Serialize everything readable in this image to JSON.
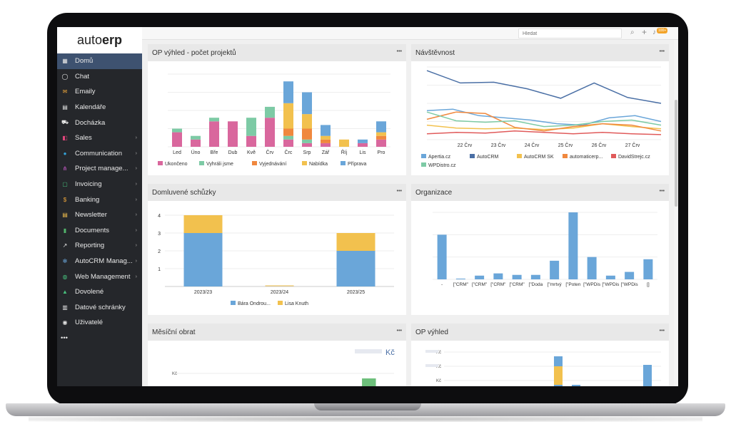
{
  "logo": {
    "part1": "auto",
    "part2": "erp"
  },
  "search": {
    "placeholder": "Hledat"
  },
  "notifications": {
    "count": "100+"
  },
  "sidebar": {
    "items": [
      {
        "label": "Domů",
        "icon": "grid-icon",
        "active": true,
        "arrow": false
      },
      {
        "label": "Chat",
        "icon": "chat-icon",
        "arrow": false
      },
      {
        "label": "Emaily",
        "icon": "email-icon",
        "arrow": false
      },
      {
        "label": "Kalendáře",
        "icon": "calendar-icon",
        "arrow": false
      },
      {
        "label": "Docházka",
        "icon": "car-icon",
        "arrow": false
      },
      {
        "label": "Sales",
        "icon": "sales-icon",
        "arrow": true
      },
      {
        "label": "Communication",
        "icon": "communication-icon",
        "arrow": true
      },
      {
        "label": "Project manage...",
        "icon": "project-icon",
        "arrow": true
      },
      {
        "label": "Invoicing",
        "icon": "invoice-icon",
        "arrow": true
      },
      {
        "label": "Banking",
        "icon": "dollar-icon",
        "arrow": true
      },
      {
        "label": "Newsletter",
        "icon": "newsletter-icon",
        "arrow": true
      },
      {
        "label": "Documents",
        "icon": "document-icon",
        "arrow": true
      },
      {
        "label": "Reporting",
        "icon": "reporting-icon",
        "arrow": true
      },
      {
        "label": "AutoCRM Manag...",
        "icon": "autocrm-icon",
        "arrow": true
      },
      {
        "label": "Web Management",
        "icon": "globe-icon",
        "arrow": true
      },
      {
        "label": "Dovolené",
        "icon": "tree-icon",
        "arrow": false
      },
      {
        "label": "Datové schránky",
        "icon": "inbox-icon",
        "arrow": false
      },
      {
        "label": "Uživatelé",
        "icon": "user-icon",
        "arrow": false
      },
      {
        "label": "•••",
        "icon": "",
        "arrow": false
      }
    ]
  },
  "colors": {
    "pink": "#d9679d",
    "green": "#7dcaa5",
    "orange": "#f0883e",
    "yellow": "#f2c14e",
    "blue": "#6aa6d9",
    "darkblue": "#4a6fa5",
    "red": "#e05a5a",
    "teal": "#6cc7b4",
    "sidebar": "#25272b",
    "active": "#3e5270"
  },
  "panels": {
    "op_vyhled_projekty": {
      "title": "OP výhled - počet projektů",
      "menu": "•••"
    },
    "navstevnost": {
      "title": "Návštěvnost",
      "menu": "•••"
    },
    "schuzky": {
      "title": "Domluvené schůzky",
      "menu": "•••"
    },
    "organizace": {
      "title": "Organizace",
      "menu": "•••"
    },
    "obrat": {
      "title": "Měsíční obrat",
      "menu": "•••",
      "currency": "Kč",
      "ytick": "Kč"
    },
    "op_vyhled": {
      "title": "OP výhled",
      "menu": "•••",
      "yticks": [
        "Kč",
        "Kč",
        "Kč"
      ]
    }
  },
  "chart_data": [
    {
      "id": "projekty",
      "type": "bar",
      "stacked": true,
      "categories": [
        "Led",
        "Úno",
        "Bře",
        "Dub",
        "Kvě",
        "Črv",
        "Črc",
        "Srp",
        "Zář",
        "Říj",
        "Lis",
        "Pro"
      ],
      "series": [
        {
          "name": "Ukončeno",
          "color": "#d9679d",
          "values": [
            4,
            2,
            7,
            7,
            3,
            8,
            2,
            1,
            1,
            0,
            1,
            2
          ]
        },
        {
          "name": "Vyhráli jsme",
          "color": "#7dcaa5",
          "values": [
            1,
            1,
            1,
            0,
            5,
            3,
            1,
            1,
            0,
            0,
            0,
            0
          ]
        },
        {
          "name": "Vyjednávání",
          "color": "#f0883e",
          "values": [
            0,
            0,
            0,
            0,
            0,
            0,
            2,
            3,
            1,
            0,
            0,
            1
          ]
        },
        {
          "name": "Nabídka",
          "color": "#f2c14e",
          "values": [
            0,
            0,
            0,
            0,
            0,
            0,
            7,
            4,
            1,
            2,
            0,
            1
          ]
        },
        {
          "name": "Příprava",
          "color": "#6aa6d9",
          "values": [
            0,
            0,
            0,
            0,
            0,
            0,
            6,
            6,
            3,
            0,
            1,
            3
          ]
        }
      ],
      "legend": "bottom"
    },
    {
      "id": "navstevnost",
      "type": "line",
      "x_ticks": [
        "22 Črv",
        "23 Črv",
        "24 Črv",
        "25 Črv",
        "26 Črv",
        "27 Črv"
      ],
      "series": [
        {
          "name": "Apertia.cz",
          "color": "#6aa6d9",
          "values": [
            40,
            42,
            33,
            30,
            27,
            22,
            20,
            30,
            33,
            25
          ]
        },
        {
          "name": "AutoCRM",
          "color": "#4a6fa5",
          "values": [
            95,
            78,
            79,
            70,
            57,
            78,
            58,
            50
          ]
        },
        {
          "name": "AutoCRM SK",
          "color": "#f2c14e",
          "values": [
            20,
            16,
            15,
            16,
            14,
            16,
            22,
            18,
            15
          ]
        },
        {
          "name": "automaticerp...",
          "color": "#f0883e",
          "values": [
            28,
            38,
            36,
            17,
            12,
            18,
            22,
            20,
            12
          ]
        },
        {
          "name": "DavidStrejc.cz",
          "color": "#e05a5a",
          "values": [
            8,
            10,
            9,
            12,
            10,
            8,
            10,
            8,
            7
          ]
        },
        {
          "name": "WPDistro.cz",
          "color": "#7dcaa5",
          "values": [
            38,
            26,
            24,
            26,
            18,
            20,
            25,
            27,
            20
          ]
        }
      ],
      "legend": "bottom"
    },
    {
      "id": "schuzky",
      "type": "bar",
      "stacked": true,
      "categories": [
        "2023/23",
        "2023/24",
        "2023/25"
      ],
      "yticks": [
        "1",
        "2",
        "3",
        "4"
      ],
      "ylim": [
        0,
        4
      ],
      "series": [
        {
          "name": "Bára Ondrou...",
          "color": "#6aa6d9",
          "values": [
            3,
            0,
            2
          ]
        },
        {
          "name": "Lisa Knuth",
          "color": "#f2c14e",
          "values": [
            1,
            0,
            1
          ]
        }
      ],
      "legend": "bottom"
    },
    {
      "id": "organizace",
      "type": "bar",
      "categories": [
        "-",
        "[\"CRM\"",
        "[\"CRM\"",
        "[\"CRM\"",
        "[\"CRM\"",
        "[\"Doda",
        "[\"mrtvý",
        "[\"Poten",
        "[\"WPDis",
        "[\"WPDis",
        "[\"WPDis",
        "[]"
      ],
      "values": [
        60,
        1,
        5,
        8,
        6,
        6,
        25,
        90,
        30,
        5,
        10,
        27
      ]
    },
    {
      "id": "obrat",
      "type": "bar",
      "values": [
        0,
        0,
        0,
        0,
        0,
        0,
        0,
        0,
        0,
        2,
        0,
        9,
        1
      ]
    },
    {
      "id": "op_vyhled",
      "type": "bar",
      "stacked": true,
      "values": []
    }
  ]
}
